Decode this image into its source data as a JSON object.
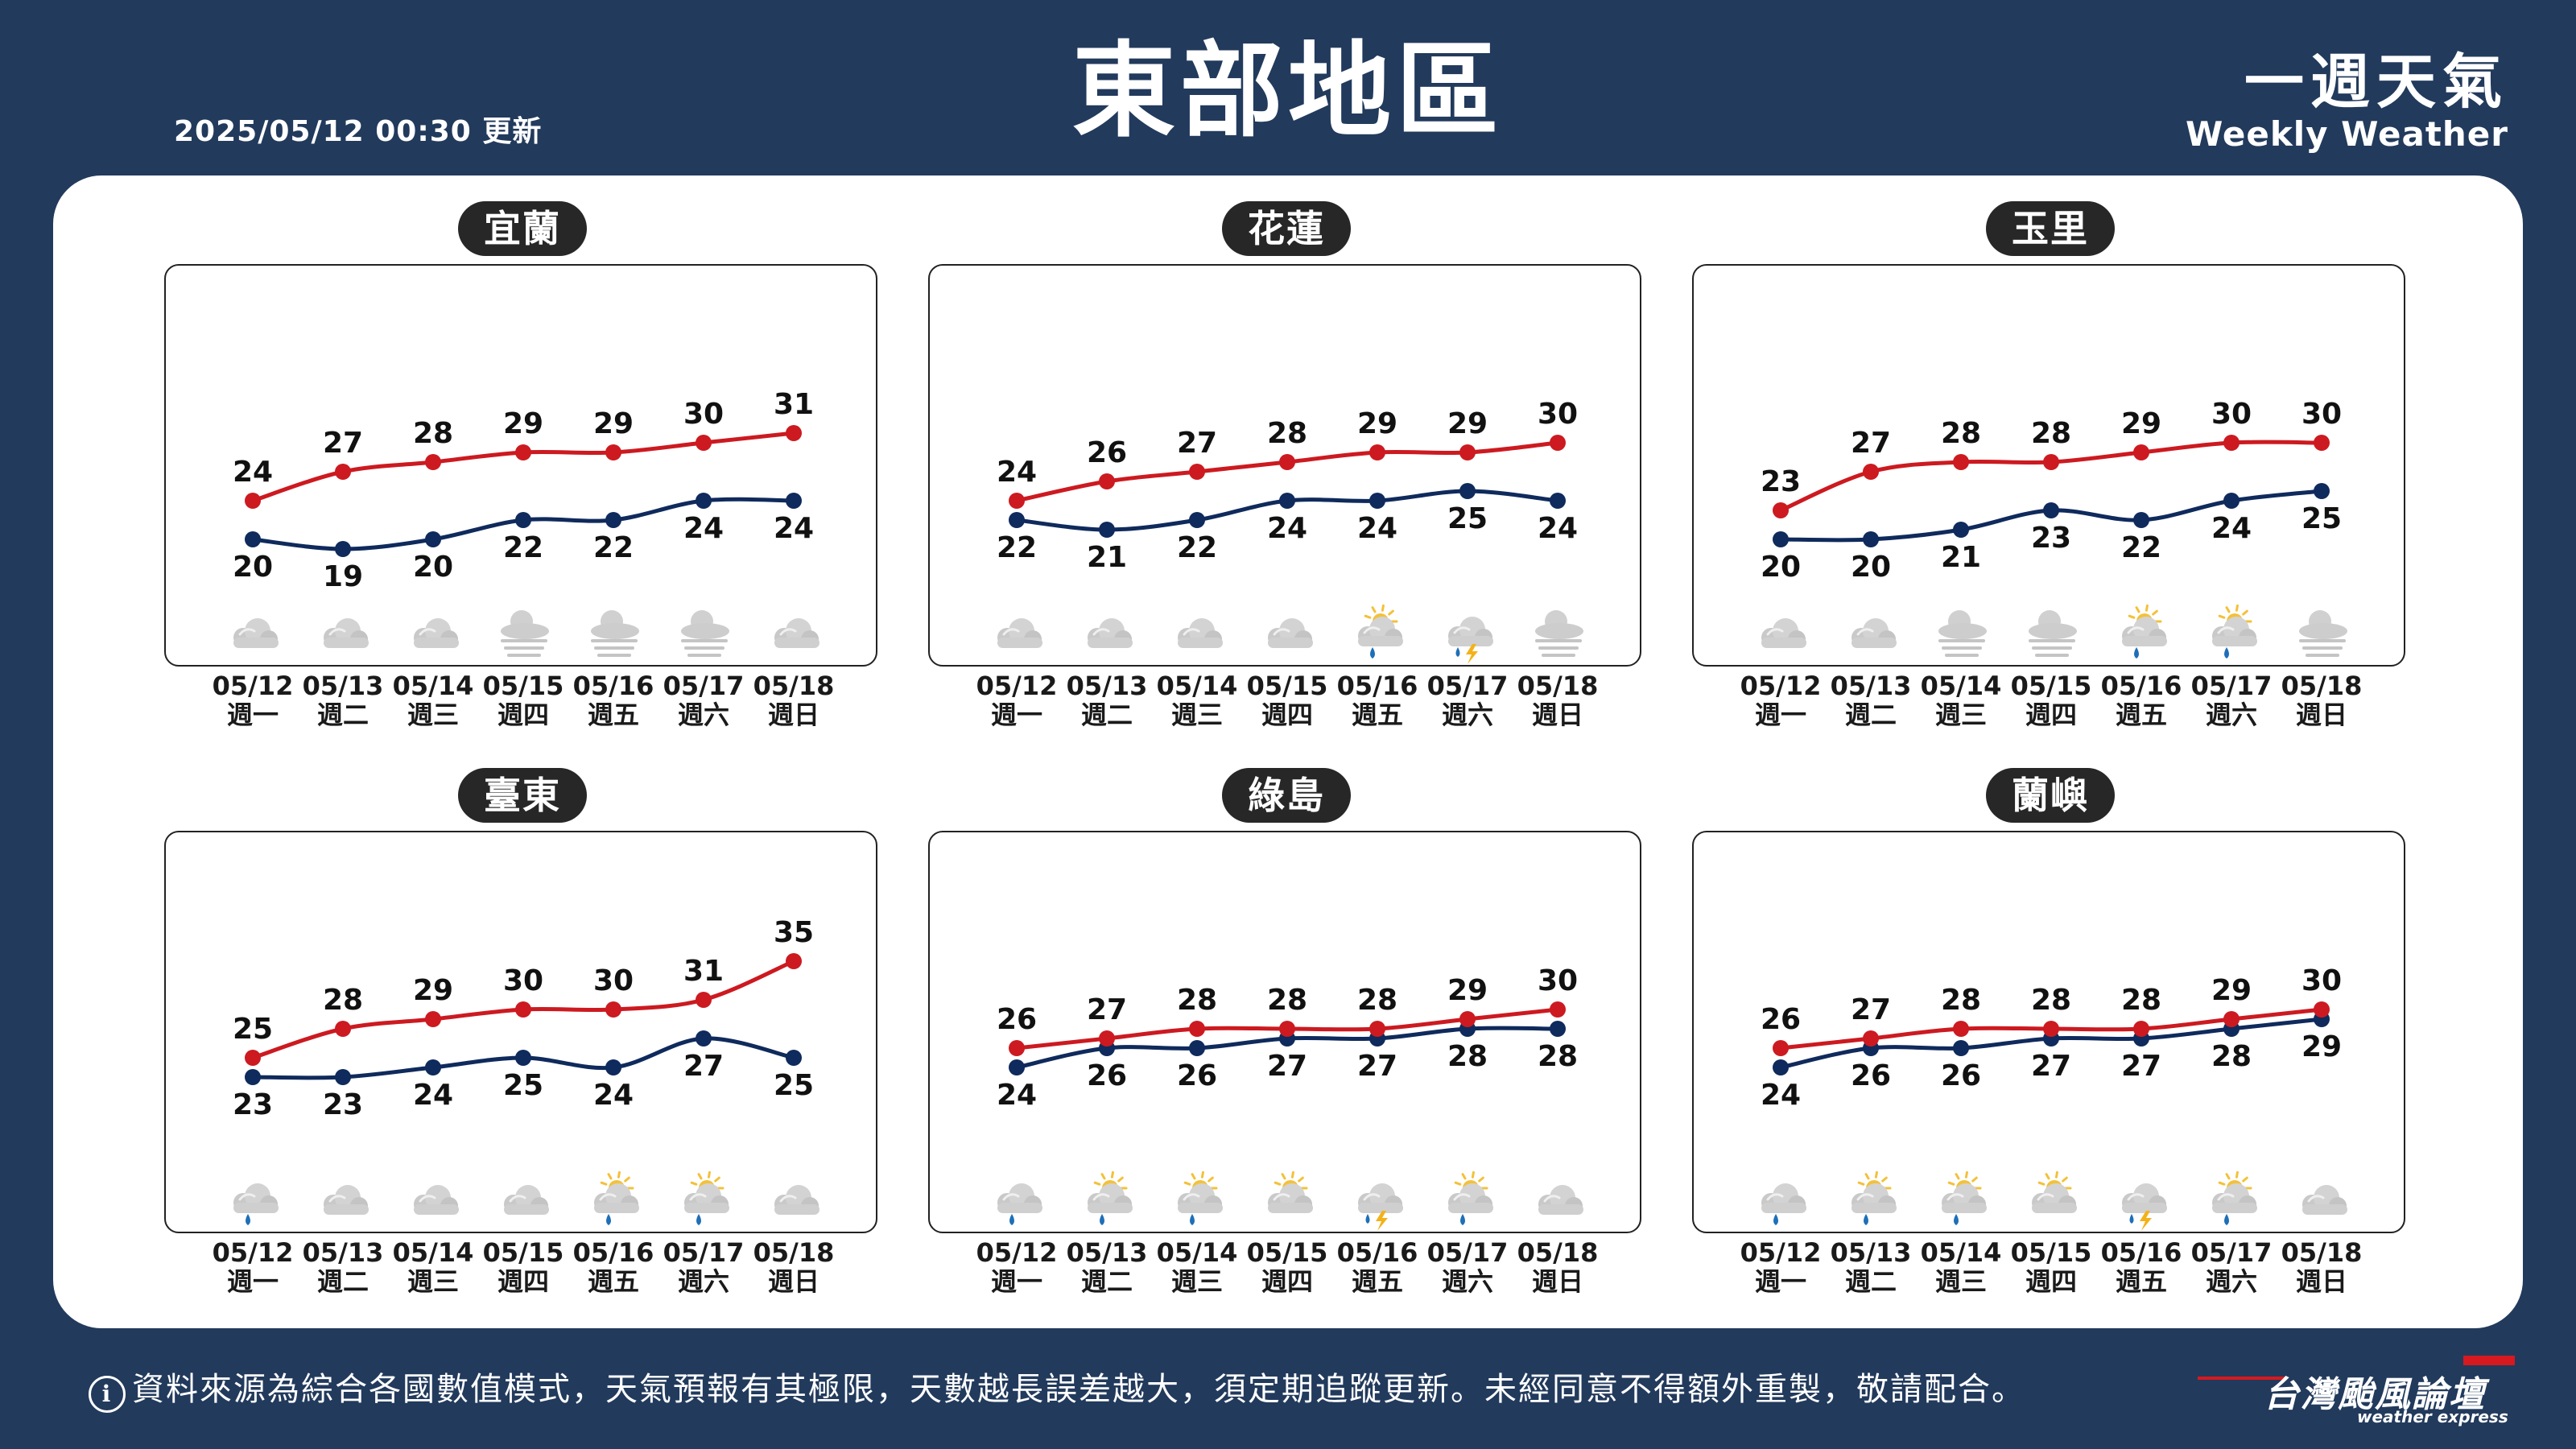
{
  "header": {
    "update_time": "2025/05/12 00:30 更新",
    "title": "東部地區",
    "brand_cn": "一週天氣",
    "brand_en": "Weekly Weather"
  },
  "footer": {
    "info_icon": "i",
    "disclaimer": "資料來源為綜合各國數值模式，天氣預報有其極限，天數越長誤差越大，須定期追蹤更新。未經同意不得額外重製，敬請配合。",
    "logo_cn": "台灣颱風論壇",
    "logo_en": "weather express"
  },
  "colors": {
    "background": "#223a5c",
    "panel": "#ffffff",
    "high_line": "#cc1a20",
    "low_line": "#0f2a5c",
    "label_bg": "#272727"
  },
  "days": [
    {
      "date": "05/12",
      "weekday": "週一"
    },
    {
      "date": "05/13",
      "weekday": "週二"
    },
    {
      "date": "05/14",
      "weekday": "週三"
    },
    {
      "date": "05/15",
      "weekday": "週四"
    },
    {
      "date": "05/16",
      "weekday": "週五"
    },
    {
      "date": "05/17",
      "weekday": "週六"
    },
    {
      "date": "05/18",
      "weekday": "週日"
    }
  ],
  "chart_data": [
    {
      "type": "line",
      "location": "宜蘭",
      "categories": [
        "05/12",
        "05/13",
        "05/14",
        "05/15",
        "05/16",
        "05/17",
        "05/18"
      ],
      "series": [
        {
          "values": [
            24,
            27,
            28,
            29,
            29,
            30,
            31
          ]
        },
        {
          "values": [
            20,
            19,
            20,
            22,
            22,
            24,
            24
          ]
        }
      ],
      "weather_icons": [
        "cloudy",
        "cloudy",
        "cloudy",
        "overcast",
        "overcast",
        "overcast",
        "cloudy"
      ]
    },
    {
      "type": "line",
      "location": "花蓮",
      "categories": [
        "05/12",
        "05/13",
        "05/14",
        "05/15",
        "05/16",
        "05/17",
        "05/18"
      ],
      "series": [
        {
          "values": [
            24,
            26,
            27,
            28,
            29,
            29,
            30
          ]
        },
        {
          "values": [
            22,
            21,
            22,
            24,
            24,
            25,
            24
          ]
        }
      ],
      "weather_icons": [
        "cloudy",
        "cloudy",
        "cloudy",
        "cloudy",
        "sun-cloud-rain",
        "thunderstorm",
        "overcast"
      ]
    },
    {
      "type": "line",
      "location": "玉里",
      "categories": [
        "05/12",
        "05/13",
        "05/14",
        "05/15",
        "05/16",
        "05/17",
        "05/18"
      ],
      "series": [
        {
          "values": [
            23,
            27,
            28,
            28,
            29,
            30,
            30
          ]
        },
        {
          "values": [
            20,
            20,
            21,
            23,
            22,
            24,
            25
          ]
        }
      ],
      "weather_icons": [
        "cloudy",
        "cloudy",
        "overcast",
        "overcast",
        "sun-cloud-rain",
        "sun-cloud-rain",
        "overcast"
      ]
    },
    {
      "type": "line",
      "location": "臺東",
      "categories": [
        "05/12",
        "05/13",
        "05/14",
        "05/15",
        "05/16",
        "05/17",
        "05/18"
      ],
      "series": [
        {
          "values": [
            25,
            28,
            29,
            30,
            30,
            31,
            35
          ]
        },
        {
          "values": [
            23,
            23,
            24,
            25,
            24,
            27,
            25
          ]
        }
      ],
      "weather_icons": [
        "rain",
        "cloudy",
        "cloudy",
        "cloudy",
        "sun-cloud-rain",
        "sun-cloud-rain",
        "cloudy"
      ]
    },
    {
      "type": "line",
      "location": "綠島",
      "categories": [
        "05/12",
        "05/13",
        "05/14",
        "05/15",
        "05/16",
        "05/17",
        "05/18"
      ],
      "series": [
        {
          "values": [
            26,
            27,
            28,
            28,
            28,
            29,
            30
          ]
        },
        {
          "values": [
            24,
            26,
            26,
            27,
            27,
            28,
            28
          ]
        }
      ],
      "weather_icons": [
        "rain",
        "sun-cloud-rain",
        "sun-cloud-rain",
        "sun-cloud",
        "thunderstorm",
        "sun-cloud-rain",
        "cloudy"
      ]
    },
    {
      "type": "line",
      "location": "蘭嶼",
      "categories": [
        "05/12",
        "05/13",
        "05/14",
        "05/15",
        "05/16",
        "05/17",
        "05/18"
      ],
      "series": [
        {
          "values": [
            26,
            27,
            28,
            28,
            28,
            29,
            30
          ]
        },
        {
          "values": [
            24,
            26,
            26,
            27,
            27,
            28,
            29
          ]
        }
      ],
      "weather_icons": [
        "rain",
        "sun-cloud-rain",
        "sun-cloud-rain",
        "sun-cloud",
        "thunderstorm",
        "sun-cloud-rain",
        "cloudy"
      ]
    }
  ]
}
